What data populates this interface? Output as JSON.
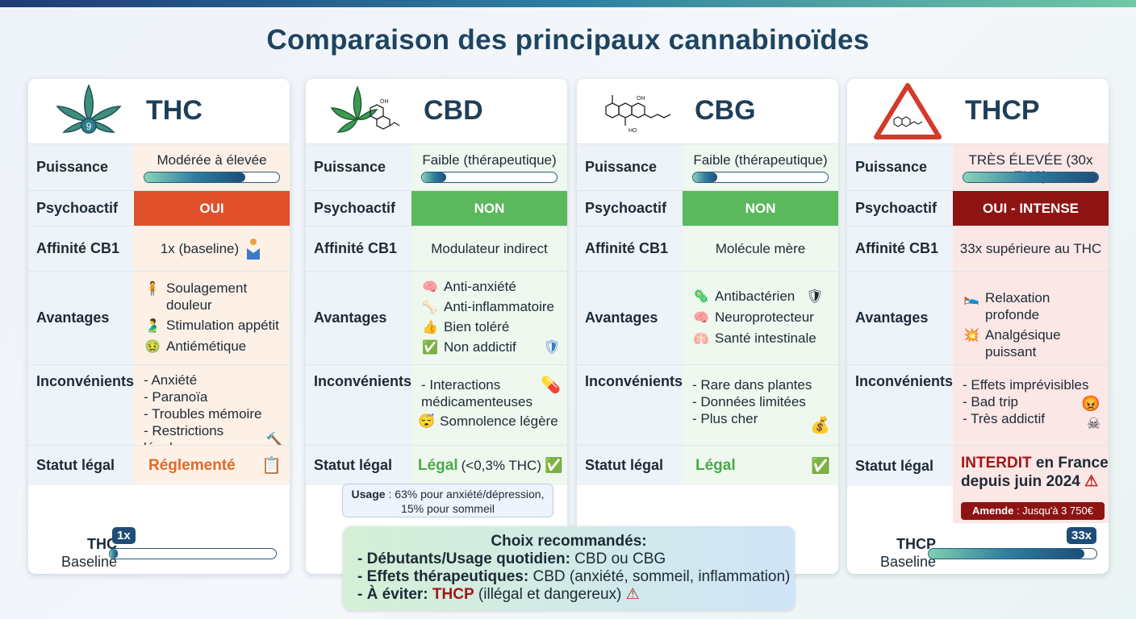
{
  "title": "Comparaison des principaux cannabinoïdes",
  "labels": {
    "puissance": "Puissance",
    "psychoactif": "Psychoactif",
    "affinite": "Affinité CB1",
    "avantages": "Avantages",
    "inconvenients": "Inconvénients",
    "statut": "Statut légal"
  },
  "cards": [
    {
      "name": "THC",
      "puissance": "Modérée à élevée",
      "puissance_level": 0.75,
      "psychoactif": "OUI",
      "affinite": "1x (baseline)",
      "avantages": [
        "Soulagement douleur",
        "Stimulation appétit",
        "Antiémétique"
      ],
      "inconvenients": [
        "- Anxiété",
        "- Paranoïa",
        "- Troubles mémoire",
        "- Restrictions légales"
      ],
      "statut": "Réglementé",
      "footer_name": "THC",
      "footer_sub": "Baseline",
      "footer_badge": "1x",
      "footer_level": 0.05,
      "logo_number": "9"
    },
    {
      "name": "CBD",
      "puissance": "Faible (thérapeutique)",
      "puissance_level": 0.18,
      "psychoactif": "NON",
      "affinite": "Modulateur indirect",
      "avantages": [
        "Anti-anxiété",
        "Anti-inflammatoire",
        "Bien toléré",
        "Non addictif"
      ],
      "inconvenients": [
        "- Interactions médicamenteuses",
        "Somnolence légère"
      ],
      "statut": "Légal",
      "statut_note": "(<0,3% THC)",
      "usage_label": "Usage",
      "usage_text": ": 63% pour anxiété/dépression,",
      "usage_text2": "15% pour sommeil"
    },
    {
      "name": "CBG",
      "puissance": "Faible (thérapeutique)",
      "puissance_level": 0.18,
      "psychoactif": "NON",
      "affinite": "Molécule mère",
      "avantages": [
        "Antibactérien",
        "Neuroprotecteur",
        "Santé intestinale"
      ],
      "inconvenients": [
        "- Rare dans plantes",
        "- Données limitées",
        "- Plus cher"
      ],
      "statut": "Légal"
    },
    {
      "name": "THCP",
      "puissance": "TRÈS ÉLEVÉE (30x THC)",
      "puissance_level": 1.0,
      "psychoactif": "OUI - INTENSE",
      "affinite": "33x supérieure au THC",
      "avantages": [
        "Relaxation profonde",
        "Analgésique puissant"
      ],
      "inconvenients": [
        "- Effets imprévisibles",
        "- Bad trip",
        "- Très addictif"
      ],
      "statut_red": "INTERDIT",
      "statut_rest": " en France",
      "statut_line2": "depuis juin 2024",
      "amende_label": "Amende",
      "amende_text": " : Jusqu'à 3 750€",
      "footer_name": "THCP",
      "footer_sub": "Baseline",
      "footer_badge": "33x",
      "footer_level": 0.93
    }
  ],
  "reco": {
    "title": "Choix recommandés:",
    "l1_bold": "- Débutants/Usage quotidien:",
    "l1_rest": " CBD ou CBG",
    "l2_bold": "- Effets thérapeutiques:",
    "l2_rest": " CBD (anxiété, sommeil, inflammation)",
    "l3_bold": "- À éviter:",
    "l3_red": " THCP",
    "l3_rest": " (illégal et dangereux)"
  },
  "colors": {
    "oui": "#e0502a",
    "non": "#5cb85c",
    "oui_intense": "#8e1414",
    "reglemente": "#e06a2a",
    "legal": "#4aa84a",
    "interdit": "#a01818"
  }
}
